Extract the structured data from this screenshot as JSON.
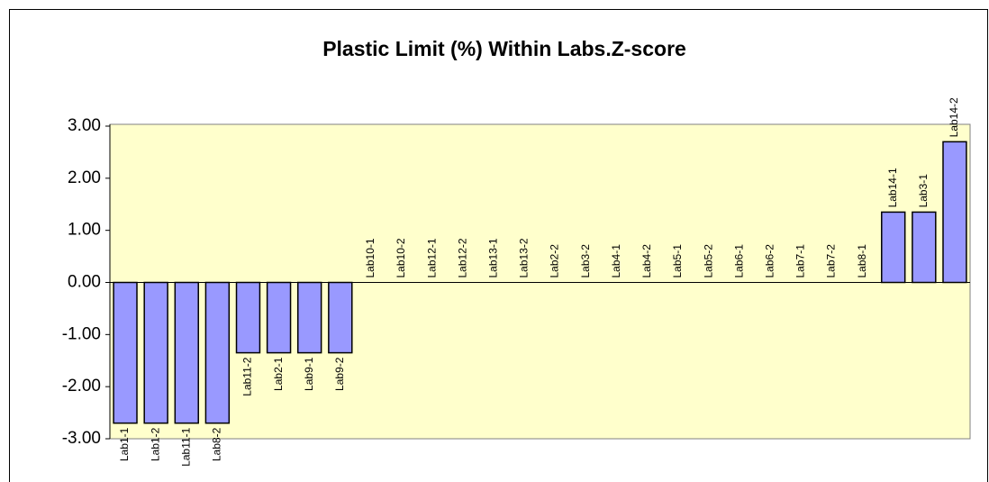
{
  "chart_data": {
    "type": "bar",
    "title": "Plastic Limit (%) Within Labs.Z-score",
    "categories": [
      "Lab1-1",
      "Lab1-2",
      "Lab11-1",
      "Lab8-2",
      "Lab11-2",
      "Lab2-1",
      "Lab9-1",
      "Lab9-2",
      "Lab10-1",
      "Lab10-2",
      "Lab12-1",
      "Lab12-2",
      "Lab13-1",
      "Lab13-2",
      "Lab2-2",
      "Lab3-2",
      "Lab4-1",
      "Lab4-2",
      "Lab5-1",
      "Lab5-2",
      "Lab6-1",
      "Lab6-2",
      "Lab7-1",
      "Lab7-2",
      "Lab8-1",
      "Lab14-1",
      "Lab3-1",
      "Lab14-2"
    ],
    "values": [
      -2.7,
      -2.7,
      -2.7,
      -2.7,
      -1.35,
      -1.35,
      -1.35,
      -1.35,
      0,
      0,
      0,
      0,
      0,
      0,
      0,
      0,
      0,
      0,
      0,
      0,
      0,
      0,
      0,
      0,
      0,
      1.35,
      1.35,
      2.7
    ],
    "color": "#9999ff",
    "ylim": [
      -3,
      3
    ],
    "yticks": [
      {
        "value": -3,
        "label": "-3.00"
      },
      {
        "value": -2,
        "label": "-2.00"
      },
      {
        "value": -1,
        "label": "-1.00"
      },
      {
        "value": 0,
        "label": "0.00"
      },
      {
        "value": 1,
        "label": "1.00"
      },
      {
        "value": 2,
        "label": "2.00"
      },
      {
        "value": 3,
        "label": "3.00"
      }
    ],
    "grid": false,
    "plot_background": "#ffffcc"
  }
}
